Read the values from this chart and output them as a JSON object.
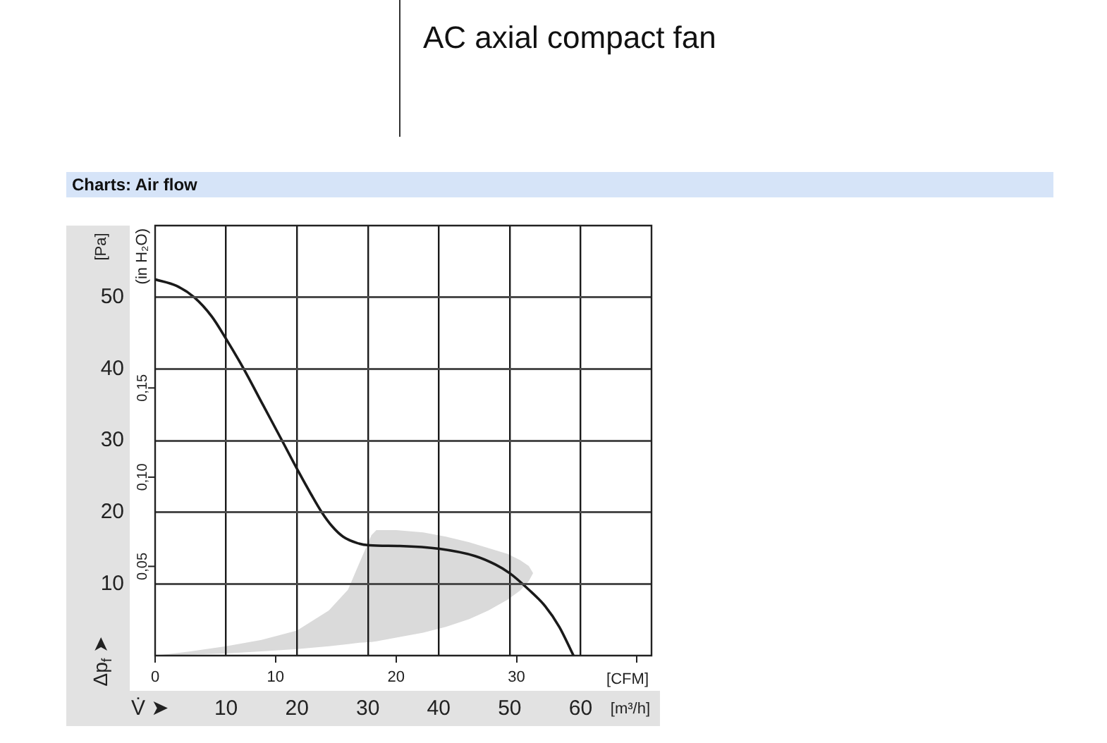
{
  "chart_data": {
    "type": "line",
    "title": "AC axial compact fan",
    "subtitle": "Charts: Air flow",
    "xlabel": "[m³/h]",
    "x2label": "[CFM]",
    "ylabel": "[Pa]",
    "y2label": "(in H₂O)",
    "annotations": [
      "Δp$_{f}$ ➤",
      "V̇ ➤"
    ],
    "xlim": [
      0,
      70
    ],
    "xticks": [
      10,
      20,
      30,
      40,
      50,
      60
    ],
    "x2lim": [
      0,
      41.2
    ],
    "x2ticks": [
      0,
      10,
      20,
      30,
      {
        "value": 40,
        "label": null
      }
    ],
    "ylim": [
      0,
      60
    ],
    "yticks": [
      10,
      20,
      30,
      40,
      50
    ],
    "y2lim": [
      0,
      0.241
    ],
    "y2ticks": [
      {
        "value": 0.05,
        "label": "0,05"
      },
      {
        "value": 0.1,
        "label": "0,10"
      },
      {
        "value": 0.15,
        "label": "0,15"
      }
    ],
    "grid": true,
    "series": [
      {
        "type": "area",
        "color": "#dadada",
        "x": [
          0,
          5,
          10,
          15,
          20,
          24.5,
          27.2,
          28.8,
          30.5,
          31.2,
          34,
          37.8,
          41,
          44.3,
          47,
          49.7,
          51.5,
          52.7,
          53.3
        ],
        "values": [
          null,
          null,
          null,
          null,
          null,
          null,
          null,
          null,
          null,
          null,
          null,
          null,
          null,
          null,
          null,
          null,
          null,
          null,
          null
        ],
        "lower": [
          0,
          0.15,
          0.3,
          0.6,
          0.9,
          1.3,
          1.6,
          1.8,
          1.9,
          2,
          2.5,
          3.2,
          4,
          5.1,
          6.3,
          7.8,
          9.1,
          10.4,
          11.5
        ],
        "upper": [
          0,
          0.6,
          1.3,
          2.2,
          3.5,
          6.3,
          9.2,
          12.9,
          16.8,
          17.5,
          17.5,
          17.2,
          16.6,
          15.8,
          15,
          14.2,
          13.3,
          12.5,
          11.5
        ]
      },
      {
        "type": "line",
        "color": "#1a1a1a",
        "x": [
          0,
          3,
          5.5,
          8,
          10,
          12.5,
          15.2,
          17.9,
          20.2,
          22,
          23.5,
          25,
          26.5,
          28.5,
          30.2,
          34.5,
          40.1,
          45.1,
          48,
          50,
          52.7,
          55,
          57,
          59
        ],
        "values": [
          52.5,
          51.6,
          50,
          47.3,
          44.2,
          40,
          35,
          30,
          25.7,
          22.5,
          20,
          18,
          16.6,
          15.7,
          15.4,
          15.3,
          14.9,
          13.9,
          12.7,
          11.5,
          9.2,
          6.9,
          4,
          0
        ]
      }
    ]
  }
}
